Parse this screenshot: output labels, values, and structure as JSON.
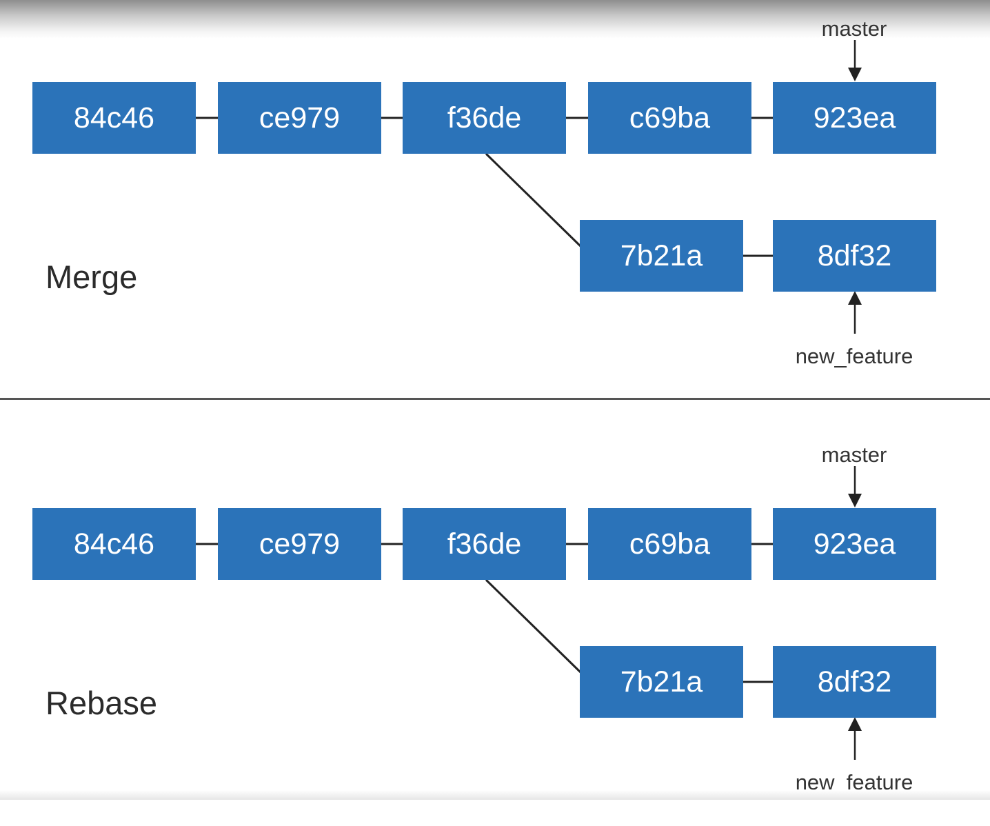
{
  "merge": {
    "title": "Merge",
    "commits": [
      "84c46",
      "ce979",
      "f36de",
      "c69ba",
      "923ea",
      "7b21a",
      "8df32"
    ],
    "master_label": "master",
    "feature_label": "new_feature"
  },
  "rebase": {
    "title": "Rebase",
    "commits": [
      "84c46",
      "ce979",
      "f36de",
      "c69ba",
      "923ea",
      "7b21a",
      "8df32"
    ],
    "master_label": "master",
    "feature_label": "new_feature"
  },
  "colors": {
    "commit_fill": "#2b73b9",
    "commit_text": "#ffffff",
    "line": "#222222"
  }
}
